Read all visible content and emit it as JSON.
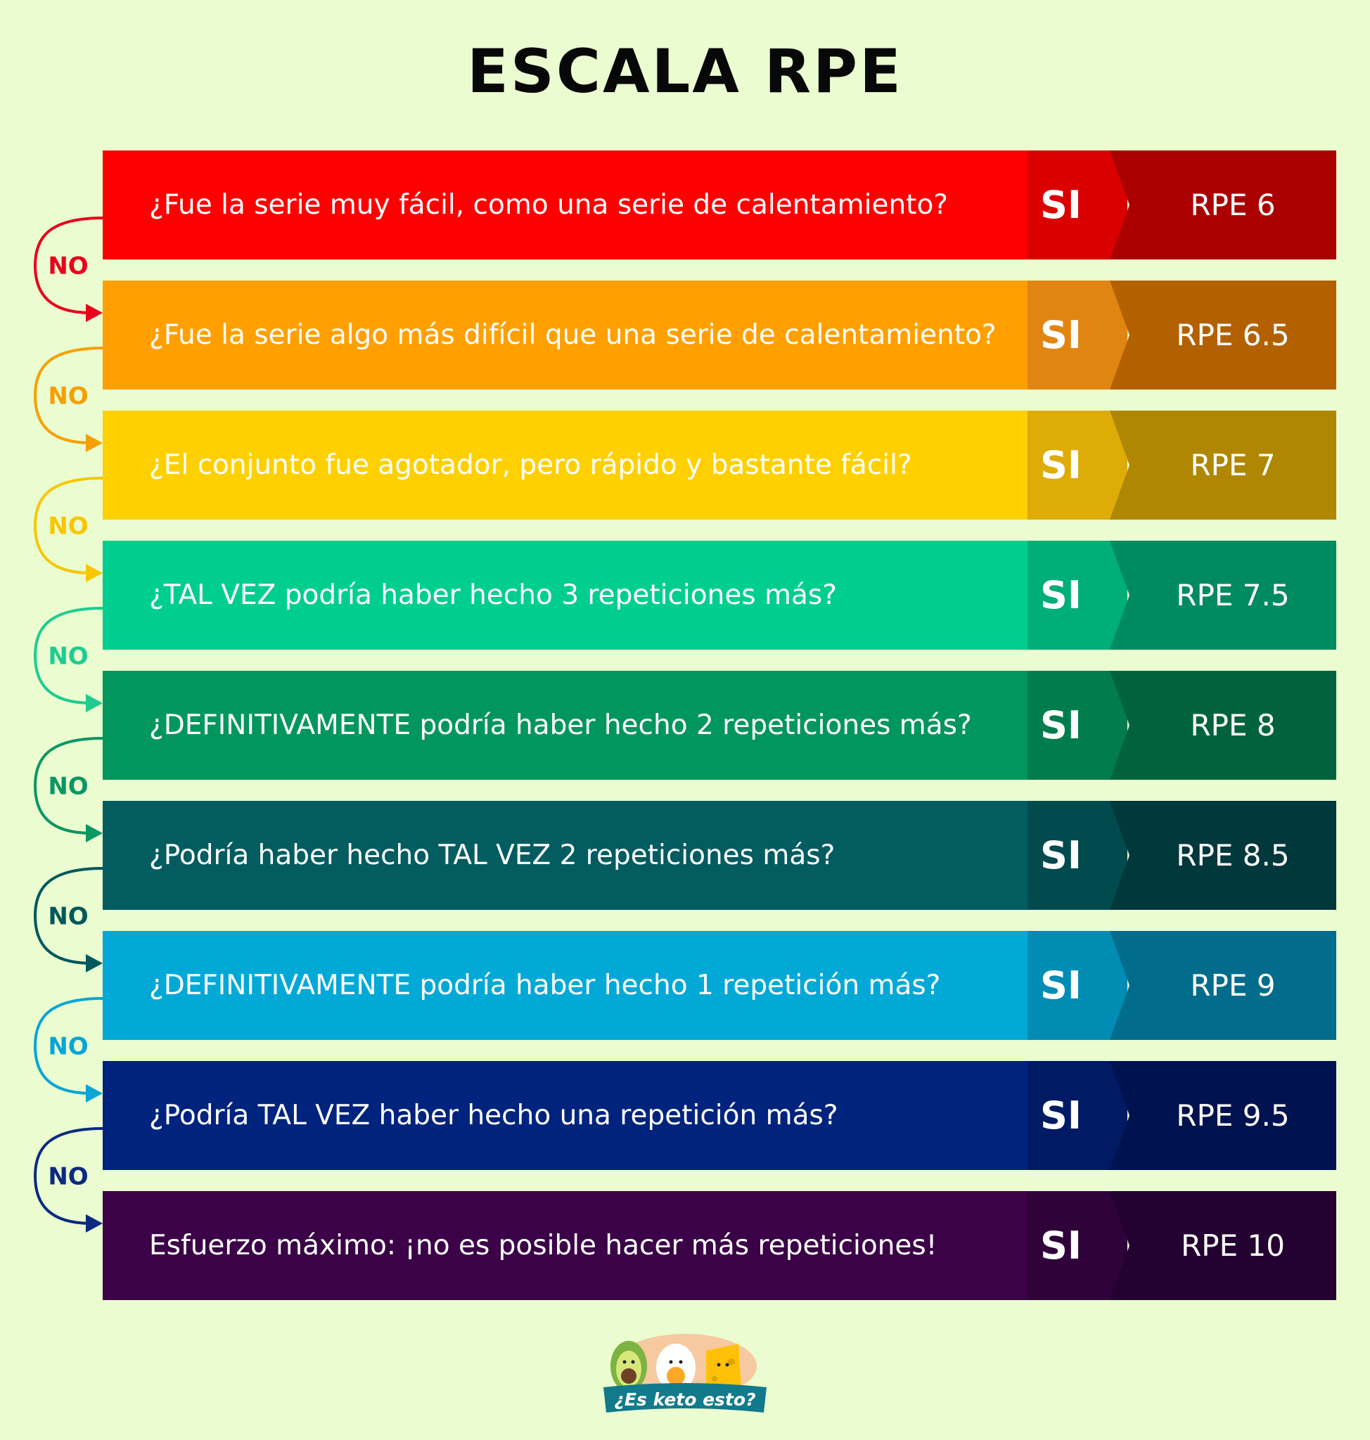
{
  "title": "ESCALA RPE",
  "yes_label": "SI",
  "no_label": "NO",
  "rows": [
    {
      "question": "¿Fue la serie muy fácil, como una serie de calentamiento?",
      "rpe": "RPE 6",
      "main": "#fe0000",
      "si": "#db0000",
      "rpe_bg": "#ab0000"
    },
    {
      "question": "¿Fue la serie algo más difícil que una serie de calentamiento?",
      "rpe": "RPE 6.5",
      "main": "#ffa000",
      "si": "#e18512",
      "rpe_bg": "#b36100"
    },
    {
      "question": "¿El conjunto fue agotador, pero rápido y bastante fácil?",
      "rpe": "RPE 7",
      "main": "#ffd000",
      "si": "#ddac06",
      "rpe_bg": "#b08702"
    },
    {
      "question": "¿TAL VEZ podría haber hecho 3 repeticiones más?",
      "rpe": "RPE 7.5",
      "main": "#00ce8f",
      "si": "#00ae77",
      "rpe_bg": "#008a5f"
    },
    {
      "question": "¿DEFINITIVAMENTE podría haber hecho 2 repeticiones más?",
      "rpe": "RPE 8",
      "main": "#00965e",
      "si": "#007c4d",
      "rpe_bg": "#00633e"
    },
    {
      "question": "¿Podría haber hecho TAL VEZ 2 repeticiones más?",
      "rpe": "RPE 8.5",
      "main": "#025c60",
      "si": "#014a4d",
      "rpe_bg": "#01383b"
    },
    {
      "question": "¿DEFINITIVAMENTE podría haber hecho 1 repetición más?",
      "rpe": "RPE 9",
      "main": "#02a9d6",
      "si": "#018cb4",
      "rpe_bg": "#016c8c"
    },
    {
      "question": "¿Podría TAL VEZ haber hecho una repetición más?",
      "rpe": "RPE 9.5",
      "main": "#00237d",
      "si": "#001a63",
      "rpe_bg": "#001250"
    },
    {
      "question": "Esfuerzo máximo: ¡no es posible hacer más repeticiones!",
      "rpe": "RPE 10",
      "main": "#3b0248",
      "si": "#2f023a",
      "rpe_bg": "#230130"
    }
  ],
  "connector_colors": [
    "#e8001c",
    "#f5a000",
    "#f7c700",
    "#1fcc90",
    "#0b9664",
    "#02585c",
    "#0aa5d6",
    "#0b2a80"
  ],
  "logo_text": "¿Es keto esto?"
}
